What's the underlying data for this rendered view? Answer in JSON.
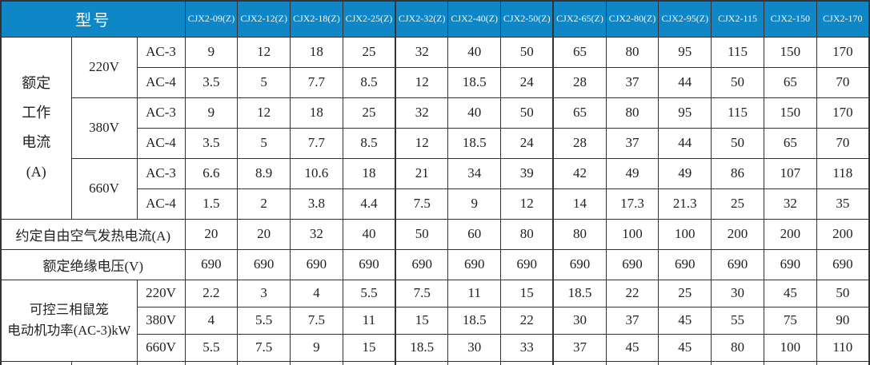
{
  "colors": {
    "header_bg": "#0F86C6",
    "header_text": "#F2F8FC",
    "border": "#333333"
  },
  "table": {
    "header": {
      "model_label": "型号",
      "models": [
        "CJX2-09(Z)",
        "CJX2-12(Z)",
        "CJX2-18(Z)",
        "CJX2-25(Z)",
        "CJX2-32(Z)",
        "CJX2-40(Z)",
        "CJX2-50(Z)",
        "CJX2-65(Z)",
        "CJX2-80(Z)",
        "CJX2-95(Z)",
        "CJX2-115",
        "CJX2-150",
        "CJX2-170"
      ]
    },
    "sections": {
      "rated_current": {
        "label": "额定\n工作\n电流\n(A)",
        "rows": [
          {
            "voltage": "220V",
            "category": "AC-3",
            "values": [
              "9",
              "12",
              "18",
              "25",
              "32",
              "40",
              "50",
              "65",
              "80",
              "95",
              "115",
              "150",
              "170"
            ]
          },
          {
            "voltage": "220V",
            "category": "AC-4",
            "values": [
              "3.5",
              "5",
              "7.7",
              "8.5",
              "12",
              "18.5",
              "24",
              "28",
              "37",
              "44",
              "50",
              "65",
              "70"
            ]
          },
          {
            "voltage": "380V",
            "category": "AC-3",
            "values": [
              "9",
              "12",
              "18",
              "25",
              "32",
              "40",
              "50",
              "65",
              "80",
              "95",
              "115",
              "150",
              "170"
            ]
          },
          {
            "voltage": "380V",
            "category": "AC-4",
            "values": [
              "3.5",
              "5",
              "7.7",
              "8.5",
              "12",
              "18.5",
              "24",
              "28",
              "37",
              "44",
              "50",
              "65",
              "70"
            ]
          },
          {
            "voltage": "660V",
            "category": "AC-3",
            "values": [
              "6.6",
              "8.9",
              "10.6",
              "18",
              "21",
              "34",
              "39",
              "42",
              "49",
              "49",
              "86",
              "107",
              "118"
            ]
          },
          {
            "voltage": "660V",
            "category": "AC-4",
            "values": [
              "1.5",
              "2",
              "3.8",
              "4.4",
              "7.5",
              "9",
              "12",
              "14",
              "17.3",
              "21.3",
              "25",
              "32",
              "35"
            ]
          }
        ]
      },
      "thermal_current": {
        "label": "约定自由空气发热电流(A)",
        "values": [
          "20",
          "20",
          "32",
          "40",
          "50",
          "60",
          "80",
          "80",
          "100",
          "100",
          "200",
          "200",
          "200"
        ]
      },
      "insulation_voltage": {
        "label": "额定绝缘电压(V)",
        "values": [
          "690",
          "690",
          "690",
          "690",
          "690",
          "690",
          "690",
          "690",
          "690",
          "690",
          "690",
          "690",
          "690"
        ]
      },
      "motor_power": {
        "label": "可控三相鼠笼\n电动机功率(AC-3)kW",
        "rows": [
          {
            "voltage": "220V",
            "values": [
              "2.2",
              "3",
              "4",
              "5.5",
              "7.5",
              "11",
              "15",
              "18.5",
              "22",
              "25",
              "30",
              "45",
              "50"
            ]
          },
          {
            "voltage": "380V",
            "values": [
              "4",
              "5.5",
              "7.5",
              "11",
              "15",
              "18.5",
              "22",
              "30",
              "37",
              "45",
              "55",
              "75",
              "90"
            ]
          },
          {
            "voltage": "660V",
            "values": [
              "5.5",
              "7.5",
              "9",
              "15",
              "18.5",
              "30",
              "33",
              "37",
              "45",
              "45",
              "80",
              "100",
              "110"
            ]
          }
        ]
      }
    }
  }
}
